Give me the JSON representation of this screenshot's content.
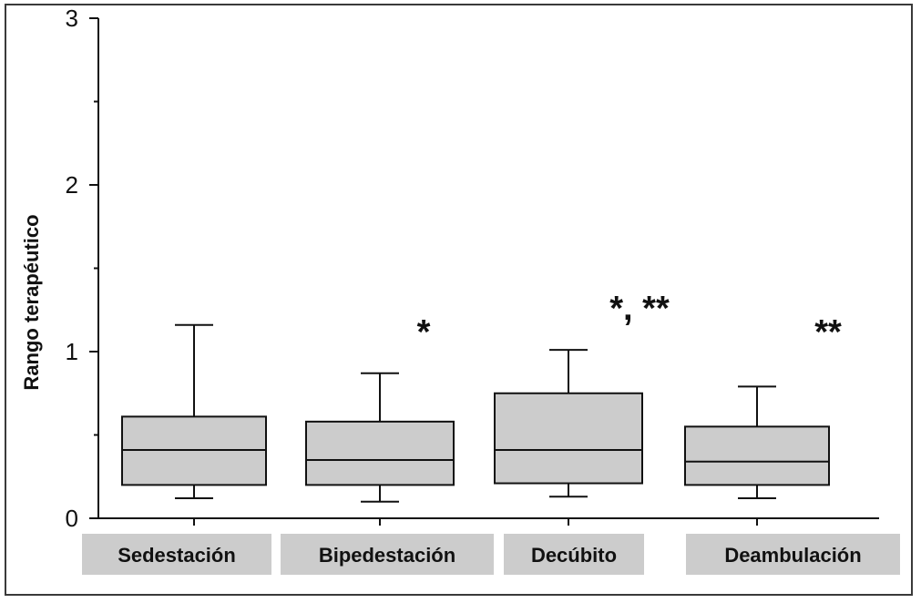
{
  "chart_data": {
    "type": "box",
    "ylabel": "Rango terapéutico",
    "ylim": [
      0,
      3
    ],
    "yticks": [
      "0",
      "1",
      "2",
      "3"
    ],
    "grid": false,
    "legend": "none",
    "box_fill": "#cccccc",
    "label_fill": "#cccccc",
    "categories": [
      "Sedestación",
      "Bipedestación",
      "Decúbito",
      "Deambulación"
    ],
    "boxes": [
      {
        "category": "Sedestación",
        "whisker_low": 0.12,
        "q1": 0.2,
        "median": 0.41,
        "q3": 0.61,
        "whisker_high": 1.16,
        "annotation": ""
      },
      {
        "category": "Bipedestación",
        "whisker_low": 0.1,
        "q1": 0.2,
        "median": 0.35,
        "q3": 0.58,
        "whisker_high": 0.87,
        "annotation": "*"
      },
      {
        "category": "Decúbito",
        "whisker_low": 0.13,
        "q1": 0.21,
        "median": 0.41,
        "q3": 0.75,
        "whisker_high": 1.01,
        "annotation": "*, **"
      },
      {
        "category": "Deambulación",
        "whisker_low": 0.12,
        "q1": 0.2,
        "median": 0.34,
        "q3": 0.55,
        "whisker_high": 0.79,
        "annotation": "**"
      }
    ]
  }
}
